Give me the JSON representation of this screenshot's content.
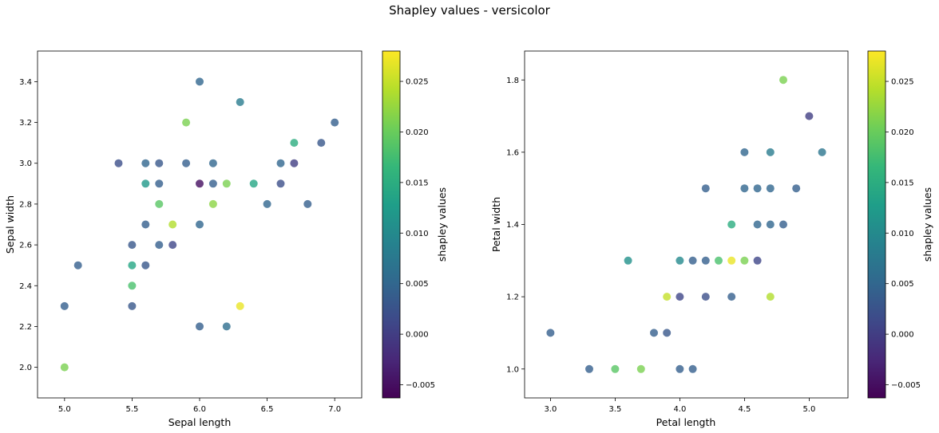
{
  "figure": {
    "title": "Shapley values - versicolor"
  },
  "colors": {
    "viridis": [
      "#440154",
      "#482878",
      "#3e4989",
      "#31688e",
      "#26828e",
      "#1f9e89",
      "#35b779",
      "#6ece58",
      "#b5de2b",
      "#fde725"
    ],
    "axes_edge": "#000000",
    "background": "#ffffff"
  },
  "chart_data": [
    {
      "type": "scatter",
      "title": "",
      "xlabel": "Sepal length",
      "ylabel": "Sepal width",
      "xlim": [
        4.8,
        7.2
      ],
      "ylim": [
        1.85,
        3.55
      ],
      "xticks": [
        5.0,
        5.5,
        6.0,
        6.5,
        7.0
      ],
      "xtick_labels": [
        "5.0",
        "5.5",
        "6.0",
        "6.5",
        "7.0"
      ],
      "yticks": [
        2.0,
        2.2,
        2.4,
        2.6,
        2.8,
        3.0,
        3.2,
        3.4
      ],
      "ytick_labels": [
        "2.0",
        "2.2",
        "2.4",
        "2.6",
        "2.8",
        "3.0",
        "3.2",
        "3.4"
      ],
      "colorbar": {
        "label": "shapley values",
        "range": [
          -0.0063,
          0.028
        ],
        "ticks": [
          -0.005,
          0.0,
          0.005,
          0.01,
          0.015,
          0.02,
          0.025
        ],
        "tick_labels": [
          "−0.005",
          "0.000",
          "0.005",
          "0.010",
          "0.015",
          "0.020",
          "0.025"
        ]
      },
      "points": [
        {
          "x": 5.0,
          "y": 2.0,
          "c": 0.021
        },
        {
          "x": 5.0,
          "y": 2.3,
          "c": 0.004
        },
        {
          "x": 5.1,
          "y": 2.5,
          "c": 0.004
        },
        {
          "x": 5.4,
          "y": 3.0,
          "c": 0.002
        },
        {
          "x": 5.5,
          "y": 2.3,
          "c": 0.003
        },
        {
          "x": 5.5,
          "y": 2.4,
          "c": 0.018
        },
        {
          "x": 5.5,
          "y": 2.5,
          "c": 0.014
        },
        {
          "x": 5.5,
          "y": 2.6,
          "c": 0.003
        },
        {
          "x": 5.6,
          "y": 2.5,
          "c": 0.003
        },
        {
          "x": 5.6,
          "y": 2.7,
          "c": 0.004
        },
        {
          "x": 5.6,
          "y": 2.9,
          "c": 0.012
        },
        {
          "x": 5.6,
          "y": 3.0,
          "c": 0.005
        },
        {
          "x": 5.7,
          "y": 2.6,
          "c": 0.004
        },
        {
          "x": 5.7,
          "y": 2.8,
          "c": 0.019
        },
        {
          "x": 5.7,
          "y": 2.9,
          "c": 0.004
        },
        {
          "x": 5.7,
          "y": 3.0,
          "c": 0.003
        },
        {
          "x": 5.8,
          "y": 2.6,
          "c": 0.001
        },
        {
          "x": 5.8,
          "y": 2.7,
          "c": 0.024
        },
        {
          "x": 5.9,
          "y": 3.0,
          "c": 0.004
        },
        {
          "x": 5.9,
          "y": 3.2,
          "c": 0.021
        },
        {
          "x": 6.0,
          "y": 2.2,
          "c": 0.004
        },
        {
          "x": 6.0,
          "y": 2.7,
          "c": 0.005
        },
        {
          "x": 6.0,
          "y": 2.9,
          "c": -0.005
        },
        {
          "x": 6.0,
          "y": 3.4,
          "c": 0.005
        },
        {
          "x": 6.1,
          "y": 2.8,
          "c": 0.022
        },
        {
          "x": 6.1,
          "y": 2.9,
          "c": 0.004
        },
        {
          "x": 6.1,
          "y": 3.0,
          "c": 0.005
        },
        {
          "x": 6.2,
          "y": 2.2,
          "c": 0.006
        },
        {
          "x": 6.2,
          "y": 2.9,
          "c": 0.021
        },
        {
          "x": 6.3,
          "y": 2.3,
          "c": 0.027
        },
        {
          "x": 6.3,
          "y": 3.3,
          "c": 0.008
        },
        {
          "x": 6.4,
          "y": 2.9,
          "c": 0.014
        },
        {
          "x": 6.5,
          "y": 2.8,
          "c": 0.005
        },
        {
          "x": 6.6,
          "y": 2.9,
          "c": 0.002
        },
        {
          "x": 6.6,
          "y": 3.0,
          "c": 0.005
        },
        {
          "x": 6.7,
          "y": 3.0,
          "c": 0.0
        },
        {
          "x": 6.7,
          "y": 3.1,
          "c": 0.015
        },
        {
          "x": 6.8,
          "y": 2.8,
          "c": 0.004
        },
        {
          "x": 6.9,
          "y": 3.1,
          "c": 0.003
        },
        {
          "x": 7.0,
          "y": 3.2,
          "c": 0.004
        }
      ]
    },
    {
      "type": "scatter",
      "title": "",
      "xlabel": "Petal length",
      "ylabel": "Petal width",
      "xlim": [
        2.8,
        5.3
      ],
      "ylim": [
        0.92,
        1.88
      ],
      "xticks": [
        3.0,
        3.5,
        4.0,
        4.5,
        5.0
      ],
      "xtick_labels": [
        "3.0",
        "3.5",
        "4.0",
        "4.5",
        "5.0"
      ],
      "yticks": [
        1.0,
        1.2,
        1.4,
        1.6,
        1.8
      ],
      "ytick_labels": [
        "1.0",
        "1.2",
        "1.4",
        "1.6",
        "1.8"
      ],
      "colorbar": {
        "label": "shapley values",
        "range": [
          -0.0063,
          0.028
        ],
        "ticks": [
          -0.005,
          0.0,
          0.005,
          0.01,
          0.015,
          0.02,
          0.025
        ],
        "tick_labels": [
          "−0.005",
          "0.000",
          "0.005",
          "0.010",
          "0.015",
          "0.020",
          "0.025"
        ]
      },
      "points": [
        {
          "x": 3.0,
          "y": 1.1,
          "c": 0.004
        },
        {
          "x": 3.3,
          "y": 1.0,
          "c": 0.004
        },
        {
          "x": 3.5,
          "y": 1.0,
          "c": 0.019
        },
        {
          "x": 3.6,
          "y": 1.3,
          "c": 0.011
        },
        {
          "x": 3.7,
          "y": 1.0,
          "c": 0.021
        },
        {
          "x": 3.8,
          "y": 1.1,
          "c": 0.004
        },
        {
          "x": 3.9,
          "y": 1.1,
          "c": 0.003
        },
        {
          "x": 3.9,
          "y": 1.2,
          "c": 0.025
        },
        {
          "x": 4.0,
          "y": 1.0,
          "c": 0.004
        },
        {
          "x": 4.0,
          "y": 1.2,
          "c": 0.001
        },
        {
          "x": 4.0,
          "y": 1.3,
          "c": 0.01
        },
        {
          "x": 4.1,
          "y": 1.0,
          "c": 0.004
        },
        {
          "x": 4.1,
          "y": 1.3,
          "c": 0.004
        },
        {
          "x": 4.2,
          "y": 1.2,
          "c": 0.002
        },
        {
          "x": 4.2,
          "y": 1.3,
          "c": 0.004
        },
        {
          "x": 4.2,
          "y": 1.5,
          "c": 0.004
        },
        {
          "x": 4.3,
          "y": 1.3,
          "c": 0.018
        },
        {
          "x": 4.4,
          "y": 1.2,
          "c": 0.004
        },
        {
          "x": 4.4,
          "y": 1.3,
          "c": 0.027
        },
        {
          "x": 4.4,
          "y": 1.4,
          "c": 0.015
        },
        {
          "x": 4.5,
          "y": 1.3,
          "c": 0.021
        },
        {
          "x": 4.5,
          "y": 1.5,
          "c": 0.005
        },
        {
          "x": 4.5,
          "y": 1.6,
          "c": 0.005
        },
        {
          "x": 4.6,
          "y": 1.3,
          "c": 0.001
        },
        {
          "x": 4.6,
          "y": 1.4,
          "c": 0.005
        },
        {
          "x": 4.6,
          "y": 1.5,
          "c": 0.005
        },
        {
          "x": 4.7,
          "y": 1.2,
          "c": 0.024
        },
        {
          "x": 4.7,
          "y": 1.4,
          "c": 0.005
        },
        {
          "x": 4.7,
          "y": 1.5,
          "c": 0.005
        },
        {
          "x": 4.7,
          "y": 1.6,
          "c": 0.008
        },
        {
          "x": 4.8,
          "y": 1.4,
          "c": 0.004
        },
        {
          "x": 4.8,
          "y": 1.8,
          "c": 0.021
        },
        {
          "x": 4.9,
          "y": 1.5,
          "c": 0.004
        },
        {
          "x": 5.0,
          "y": 1.7,
          "c": 0.0
        },
        {
          "x": 5.1,
          "y": 1.6,
          "c": 0.007
        }
      ]
    }
  ]
}
